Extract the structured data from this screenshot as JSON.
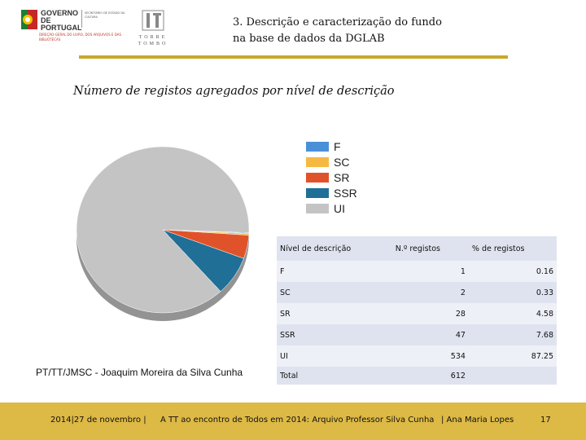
{
  "header": {
    "logo_gov": "GOVERNO DE PORTUGAL",
    "logo_gov_ministry": "SECRETÁRIO DE ESTADO DA CULTURA",
    "logo_gov_agency": "DIREÇÃO-GERAL DO LIVRO, DOS ARQUIVOS E DAS BIBLIOTECAS",
    "logo_tt": "TORRE TOMBO",
    "title_line1": "3. Descrição e caracterização do fundo",
    "title_line2": "na base de dados da DGLAB",
    "accent_color": "#c9a82c"
  },
  "subtitle": "Número de registos agregados por nível de descrição",
  "chart_data": {
    "type": "pie",
    "categories": [
      "F",
      "SC",
      "SR",
      "SSR",
      "UI"
    ],
    "values": [
      1,
      2,
      28,
      47,
      534
    ],
    "colors": [
      "#4a90d9",
      "#f5b942",
      "#e0532a",
      "#1f6f96",
      "#c4c4c4"
    ],
    "legend_position": "right"
  },
  "table": {
    "headers": [
      "Nível de descrição",
      "N.º registos",
      "% de registos"
    ],
    "rows": [
      {
        "level": "F",
        "count": "1",
        "pct": "0.16"
      },
      {
        "level": "SC",
        "count": "2",
        "pct": "0.33"
      },
      {
        "level": "SR",
        "count": "28",
        "pct": "4.58"
      },
      {
        "level": "SSR",
        "count": "47",
        "pct": "7.68"
      },
      {
        "level": "UI",
        "count": "534",
        "pct": "87.25"
      }
    ],
    "total_label": "Total",
    "total_count": "612"
  },
  "caption": "PT/TT/JMSC - Joaquim Moreira da Silva Cunha",
  "footer": {
    "date": "2014|27 de novembro |",
    "event": "A TT ao encontro de Todos em 2014: Arquivo Professor Silva Cunha",
    "author": "| Ana Maria Lopes",
    "page": "17",
    "bg_color": "#ddb945"
  }
}
